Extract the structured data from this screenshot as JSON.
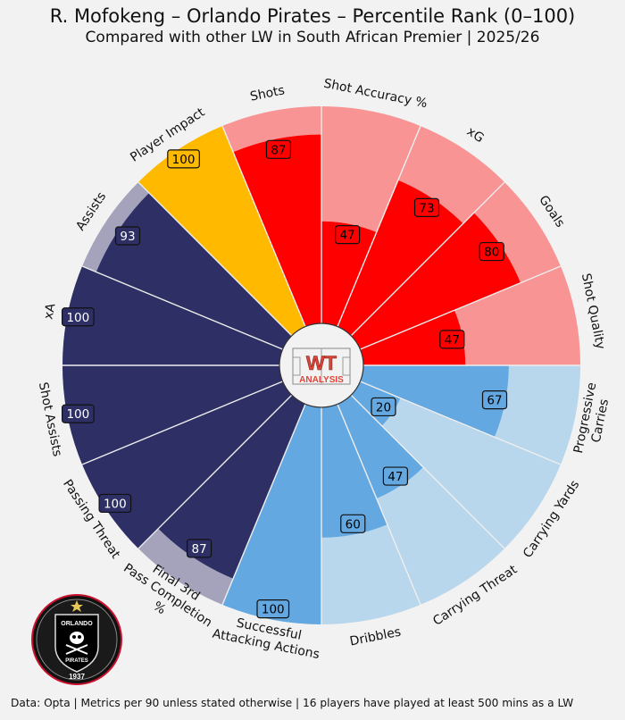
{
  "header": {
    "title": "R. Mofokeng – Orlando Pirates – Percentile Rank (0–100)",
    "subtitle": "Compared with other LW in South African Premier | 2025/26"
  },
  "footer": {
    "text": "Data: Opta | Metrics per 90 unless stated otherwise | 16 players have played at least 500 mins as a LW"
  },
  "logos": {
    "center": {
      "line1": "WT",
      "line2": "ANALYSIS"
    },
    "club": {
      "name": "ORLANDO",
      "sub": "PIRATES",
      "year": "1937"
    }
  },
  "colors": {
    "background": "#f2f2f2",
    "attacking": "#ff0000",
    "attacking_light": "#f89494",
    "carrying": "#63a8e0",
    "carrying_light": "#b8d6ec",
    "passing": "#2e2f64",
    "passing_light": "#a4a3bb",
    "impact": "#ffba00",
    "divider": "#eeeeee"
  },
  "chart_data": {
    "type": "radial_bar",
    "title": "R. Mofokeng – Orlando Pirates – Percentile Rank (0–100)",
    "range": [
      0,
      100
    ],
    "metrics": [
      {
        "label": "Shots",
        "value": 87,
        "group": "attacking"
      },
      {
        "label": "Shot Accuracy %",
        "value": 47,
        "group": "attacking"
      },
      {
        "label": "xG",
        "value": 73,
        "group": "attacking"
      },
      {
        "label": "Goals",
        "value": 80,
        "group": "attacking"
      },
      {
        "label": "Shot Quality",
        "value": 47,
        "group": "attacking"
      },
      {
        "label": "Progressive\nCarries",
        "value": 67,
        "group": "carrying"
      },
      {
        "label": "Carrying Yards",
        "value": 20,
        "group": "carrying"
      },
      {
        "label": "Carrying Threat",
        "value": 47,
        "group": "carrying"
      },
      {
        "label": "Dribbles",
        "value": 60,
        "group": "carrying"
      },
      {
        "label": "Successful\nAttacking Actions",
        "value": 100,
        "group": "carrying"
      },
      {
        "label": "Final 3rd\nPass Completion\n%",
        "value": 87,
        "group": "passing"
      },
      {
        "label": "Passing Threat",
        "value": 100,
        "group": "passing"
      },
      {
        "label": "Shot Assists",
        "value": 100,
        "group": "passing"
      },
      {
        "label": "xA",
        "value": 100,
        "group": "passing"
      },
      {
        "label": "Assists",
        "value": 93,
        "group": "passing"
      },
      {
        "label": "Player Impact",
        "value": 100,
        "group": "impact"
      }
    ]
  }
}
